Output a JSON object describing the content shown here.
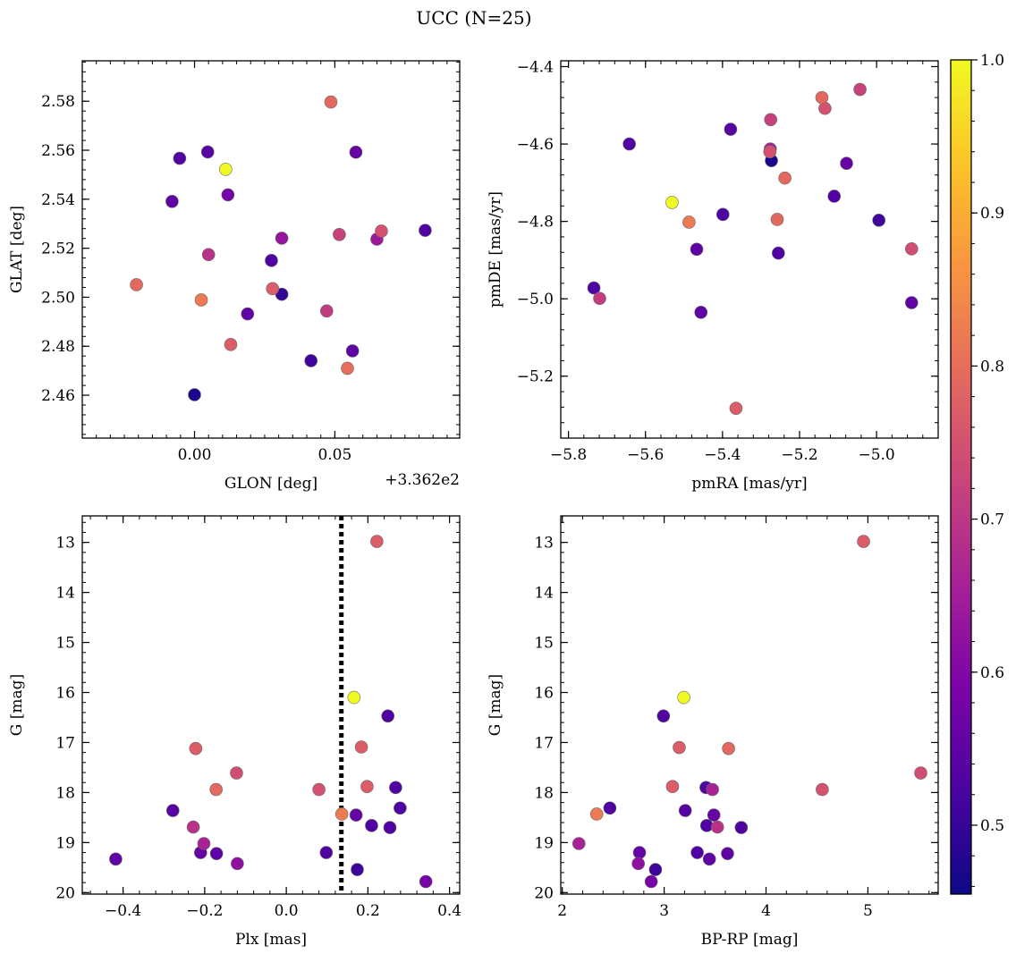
{
  "figure": {
    "title": "UCC (N=25)"
  },
  "colorbar": {
    "colormap": "plasma",
    "range": [
      0.455,
      1.0
    ],
    "ticks": [
      0.5,
      0.6,
      0.7,
      0.8,
      0.9,
      1.0
    ],
    "tick_labels": [
      "0.5",
      "0.6",
      "0.7",
      "0.8",
      "0.9",
      "1.0"
    ]
  },
  "chart_data": [
    {
      "type": "scatter",
      "name": "glon-glat",
      "xlabel": "GLON [deg]",
      "ylabel": "GLAT [deg]",
      "x_offset_label": "+3.362e2",
      "xlim": [
        -0.04,
        0.0945
      ],
      "ylim": [
        2.4425,
        2.5965
      ],
      "xticks": [
        0.0,
        0.05
      ],
      "xtick_labels": [
        "0.00",
        "0.05"
      ],
      "xminor": 0.005,
      "yticks": [
        2.46,
        2.48,
        2.5,
        2.52,
        2.54,
        2.56,
        2.58
      ],
      "ytick_labels": [
        "2.46",
        "2.48",
        "2.50",
        "2.52",
        "2.54",
        "2.56",
        "2.58"
      ],
      "yminor": 0.004,
      "points": [
        {
          "x": -0.0053,
          "y": 2.5567,
          "c": 0.53
        },
        {
          "x": 0.0047,
          "y": 2.5593,
          "c": 0.54
        },
        {
          "x": -0.008,
          "y": 2.5391,
          "c": 0.55
        },
        {
          "x": 0.0119,
          "y": 2.5418,
          "c": 0.58
        },
        {
          "x": -0.0207,
          "y": 2.5051,
          "c": 0.79
        },
        {
          "x": 0.0024,
          "y": 2.4989,
          "c": 0.82
        },
        {
          "x": 0.005,
          "y": 2.5174,
          "c": 0.69
        },
        {
          "x": 0.0129,
          "y": 2.4807,
          "c": 0.77
        },
        {
          "x": 0.0,
          "y": 2.4602,
          "c": 0.47
        },
        {
          "x": 0.0189,
          "y": 2.4932,
          "c": 0.55
        },
        {
          "x": 0.0274,
          "y": 2.515,
          "c": 0.53
        },
        {
          "x": 0.0278,
          "y": 2.5035,
          "c": 0.77
        },
        {
          "x": 0.0311,
          "y": 2.5012,
          "c": 0.5
        },
        {
          "x": 0.0311,
          "y": 2.5241,
          "c": 0.63
        },
        {
          "x": 0.0415,
          "y": 2.4741,
          "c": 0.51
        },
        {
          "x": 0.0471,
          "y": 2.4944,
          "c": 0.71
        },
        {
          "x": 0.0486,
          "y": 2.5797,
          "c": 0.79
        },
        {
          "x": 0.0516,
          "y": 2.5256,
          "c": 0.72
        },
        {
          "x": 0.0545,
          "y": 2.471,
          "c": 0.8
        },
        {
          "x": 0.0563,
          "y": 2.4781,
          "c": 0.55
        },
        {
          "x": 0.0575,
          "y": 2.5592,
          "c": 0.56
        },
        {
          "x": 0.065,
          "y": 2.5237,
          "c": 0.64
        },
        {
          "x": 0.0666,
          "y": 2.527,
          "c": 0.75
        },
        {
          "x": 0.0822,
          "y": 2.5273,
          "c": 0.53
        },
        {
          "x": 0.0111,
          "y": 2.5522,
          "c": 1.0
        }
      ]
    },
    {
      "type": "scatter",
      "name": "pmra-pmde",
      "xlabel": "pmRA [mas/yr]",
      "ylabel": "pmDE [mas/yr]",
      "xlim": [
        -5.82,
        -4.84
      ],
      "ylim": [
        -5.36,
        -4.385
      ],
      "xticks": [
        -5.8,
        -5.6,
        -5.4,
        -5.2,
        -5.0
      ],
      "xtick_labels": [
        "−5.8",
        "−5.6",
        "−5.4",
        "−5.2",
        "−5.0"
      ],
      "xminor": 0.04,
      "yticks": [
        -5.2,
        -5.0,
        -4.8,
        -4.6,
        -4.4
      ],
      "ytick_labels": [
        "−5.2",
        "−5.0",
        "−4.8",
        "−4.6",
        "−4.4"
      ],
      "yminor": 0.04,
      "points": [
        {
          "x": -5.642,
          "y": -4.6,
          "c": 0.53
        },
        {
          "x": -5.379,
          "y": -4.562,
          "c": 0.54
        },
        {
          "x": -5.275,
          "y": -4.537,
          "c": 0.72
        },
        {
          "x": -5.276,
          "y": -4.613,
          "c": 0.66
        },
        {
          "x": -5.277,
          "y": -4.62,
          "c": 0.75
        },
        {
          "x": -5.273,
          "y": -4.643,
          "c": 0.47
        },
        {
          "x": -5.238,
          "y": -4.688,
          "c": 0.79
        },
        {
          "x": -5.142,
          "y": -4.48,
          "c": 0.79
        },
        {
          "x": -5.134,
          "y": -4.508,
          "c": 0.75
        },
        {
          "x": -5.043,
          "y": -4.459,
          "c": 0.72
        },
        {
          "x": -5.078,
          "y": -4.65,
          "c": 0.56
        },
        {
          "x": -5.11,
          "y": -4.735,
          "c": 0.53
        },
        {
          "x": -4.994,
          "y": -4.797,
          "c": 0.51
        },
        {
          "x": -4.909,
          "y": -4.871,
          "c": 0.74
        },
        {
          "x": -4.909,
          "y": -5.01,
          "c": 0.55
        },
        {
          "x": -5.531,
          "y": -4.751,
          "c": 1.0
        },
        {
          "x": -5.487,
          "y": -4.802,
          "c": 0.82
        },
        {
          "x": -5.399,
          "y": -4.782,
          "c": 0.53
        },
        {
          "x": -5.258,
          "y": -4.795,
          "c": 0.79
        },
        {
          "x": -5.467,
          "y": -4.872,
          "c": 0.55
        },
        {
          "x": -5.255,
          "y": -4.882,
          "c": 0.53
        },
        {
          "x": -5.734,
          "y": -4.972,
          "c": 0.53
        },
        {
          "x": -5.719,
          "y": -4.999,
          "c": 0.71
        },
        {
          "x": -5.456,
          "y": -5.035,
          "c": 0.55
        },
        {
          "x": -5.365,
          "y": -5.283,
          "c": 0.77
        }
      ]
    },
    {
      "type": "scatter",
      "name": "plx-g",
      "xlabel": "Plx [mas]",
      "ylabel": "G [mag]",
      "xlim": [
        -0.5,
        0.425
      ],
      "ylim": [
        20.03,
        12.47
      ],
      "xticks": [
        -0.4,
        -0.2,
        0.0,
        0.2,
        0.4
      ],
      "xtick_labels": [
        "−0.4",
        "−0.2",
        "0.0",
        "0.2",
        "0.4"
      ],
      "xminor": 0.04,
      "yticks": [
        13,
        14,
        15,
        16,
        17,
        18,
        19,
        20
      ],
      "ytick_labels": [
        "13",
        "14",
        "15",
        "16",
        "17",
        "18",
        "19",
        "20"
      ],
      "yminor": 0.2,
      "vline": 0.135,
      "points": [
        {
          "x": 0.222,
          "y": 12.98,
          "c": 0.77
        },
        {
          "x": 0.166,
          "y": 16.1,
          "c": 1.0
        },
        {
          "x": 0.249,
          "y": 16.47,
          "c": 0.53
        },
        {
          "x": -0.222,
          "y": 17.12,
          "c": 0.77
        },
        {
          "x": 0.184,
          "y": 17.09,
          "c": 0.77
        },
        {
          "x": -0.122,
          "y": 17.61,
          "c": 0.74
        },
        {
          "x": -0.172,
          "y": 17.94,
          "c": 0.79
        },
        {
          "x": 0.08,
          "y": 17.94,
          "c": 0.75
        },
        {
          "x": 0.198,
          "y": 17.88,
          "c": 0.77
        },
        {
          "x": 0.268,
          "y": 17.9,
          "c": 0.53
        },
        {
          "x": -0.278,
          "y": 18.36,
          "c": 0.54
        },
        {
          "x": 0.136,
          "y": 18.43,
          "c": 0.82
        },
        {
          "x": 0.171,
          "y": 18.45,
          "c": 0.56
        },
        {
          "x": 0.279,
          "y": 18.31,
          "c": 0.53
        },
        {
          "x": 0.209,
          "y": 18.66,
          "c": 0.53
        },
        {
          "x": 0.254,
          "y": 18.7,
          "c": 0.53
        },
        {
          "x": -0.228,
          "y": 18.69,
          "c": 0.69
        },
        {
          "x": -0.202,
          "y": 19.02,
          "c": 0.66
        },
        {
          "x": -0.21,
          "y": 19.2,
          "c": 0.56
        },
        {
          "x": -0.171,
          "y": 19.22,
          "c": 0.55
        },
        {
          "x": 0.098,
          "y": 19.2,
          "c": 0.53
        },
        {
          "x": -0.12,
          "y": 19.42,
          "c": 0.62
        },
        {
          "x": -0.418,
          "y": 19.33,
          "c": 0.55
        },
        {
          "x": 0.174,
          "y": 19.54,
          "c": 0.51
        },
        {
          "x": 0.342,
          "y": 19.78,
          "c": 0.58
        }
      ]
    },
    {
      "type": "scatter",
      "name": "bprp-g",
      "xlabel": "BP-RP [mag]",
      "ylabel": "G [mag]",
      "xlim": [
        1.985,
        5.69
      ],
      "ylim": [
        20.03,
        12.47
      ],
      "xticks": [
        2,
        3,
        4,
        5
      ],
      "xtick_labels": [
        "2",
        "3",
        "4",
        "5"
      ],
      "xminor": 0.2,
      "yticks": [
        13,
        14,
        15,
        16,
        17,
        18,
        19,
        20
      ],
      "ytick_labels": [
        "13",
        "14",
        "15",
        "16",
        "17",
        "18",
        "19",
        "20"
      ],
      "yminor": 0.2,
      "points": [
        {
          "x": 4.957,
          "y": 12.98,
          "c": 0.77
        },
        {
          "x": 3.193,
          "y": 16.1,
          "c": 1.0
        },
        {
          "x": 2.993,
          "y": 16.47,
          "c": 0.53
        },
        {
          "x": 3.148,
          "y": 17.1,
          "c": 0.77
        },
        {
          "x": 3.632,
          "y": 17.12,
          "c": 0.79
        },
        {
          "x": 5.519,
          "y": 17.61,
          "c": 0.74
        },
        {
          "x": 3.082,
          "y": 17.88,
          "c": 0.77
        },
        {
          "x": 3.411,
          "y": 17.9,
          "c": 0.53
        },
        {
          "x": 3.474,
          "y": 17.94,
          "c": 0.66
        },
        {
          "x": 4.552,
          "y": 17.94,
          "c": 0.75
        },
        {
          "x": 2.338,
          "y": 18.43,
          "c": 0.82
        },
        {
          "x": 2.467,
          "y": 18.31,
          "c": 0.53
        },
        {
          "x": 3.207,
          "y": 18.36,
          "c": 0.54
        },
        {
          "x": 3.488,
          "y": 18.45,
          "c": 0.56
        },
        {
          "x": 3.418,
          "y": 18.66,
          "c": 0.53
        },
        {
          "x": 3.523,
          "y": 18.69,
          "c": 0.69
        },
        {
          "x": 3.757,
          "y": 18.7,
          "c": 0.53
        },
        {
          "x": 2.163,
          "y": 19.02,
          "c": 0.66
        },
        {
          "x": 2.758,
          "y": 19.2,
          "c": 0.56
        },
        {
          "x": 3.325,
          "y": 19.2,
          "c": 0.53
        },
        {
          "x": 3.622,
          "y": 19.22,
          "c": 0.55
        },
        {
          "x": 2.746,
          "y": 19.42,
          "c": 0.62
        },
        {
          "x": 3.444,
          "y": 19.33,
          "c": 0.55
        },
        {
          "x": 2.915,
          "y": 19.54,
          "c": 0.51
        },
        {
          "x": 2.873,
          "y": 19.78,
          "c": 0.58
        }
      ]
    }
  ]
}
